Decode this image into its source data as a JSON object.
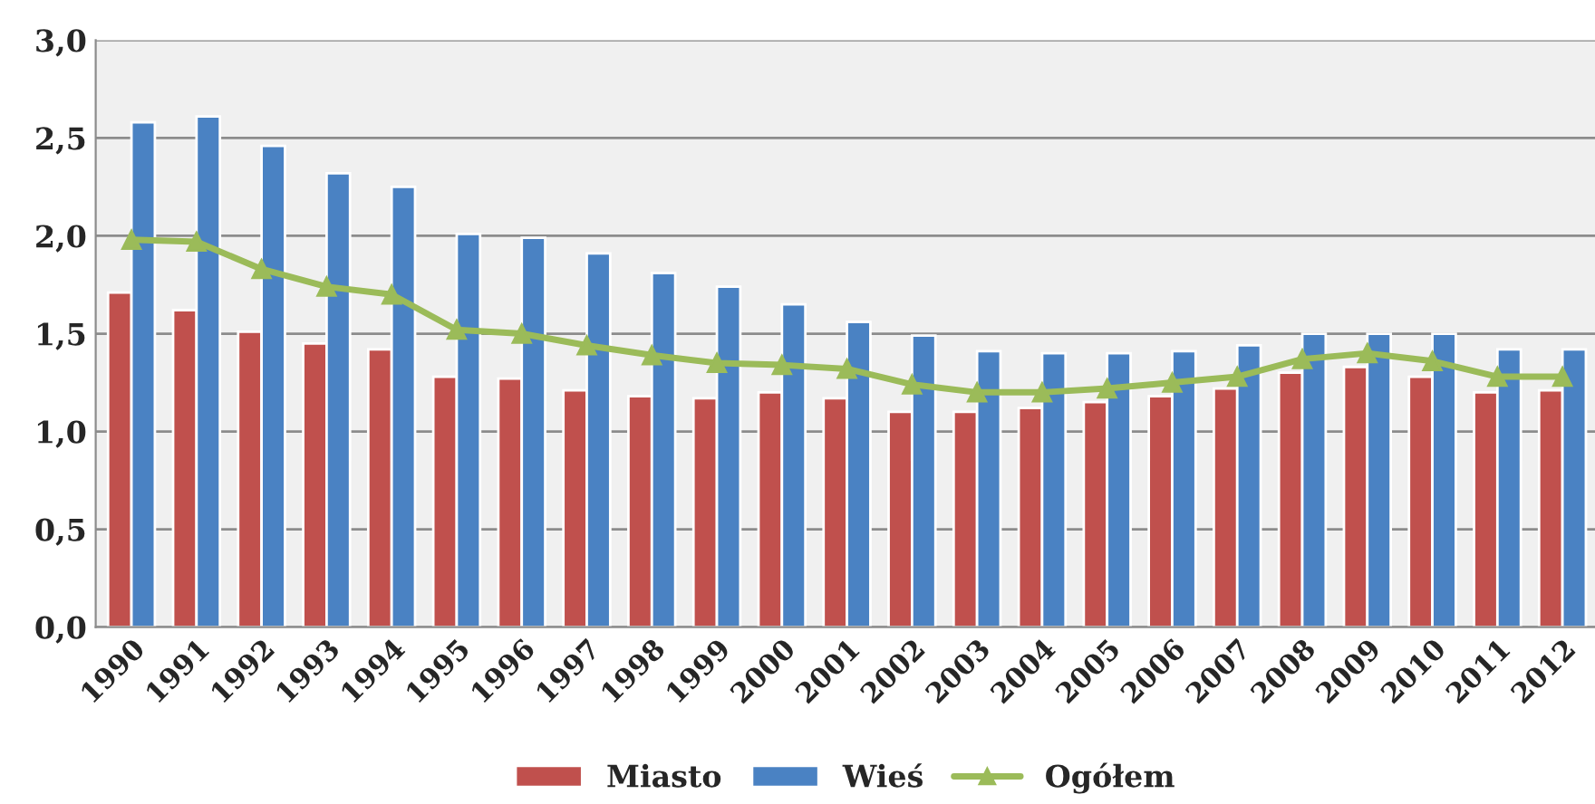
{
  "chart_data": {
    "type": "bar",
    "categories": [
      "1990",
      "1991",
      "1992",
      "1993",
      "1994",
      "1995",
      "1996",
      "1997",
      "1998",
      "1999",
      "2000",
      "2001",
      "2002",
      "2003",
      "2004",
      "2005",
      "2006",
      "2007",
      "2008",
      "2009",
      "2010",
      "2011",
      "2012"
    ],
    "series": [
      {
        "name": "Miasto",
        "color": "#c0504d",
        "values": [
          1.71,
          1.62,
          1.51,
          1.45,
          1.42,
          1.28,
          1.27,
          1.21,
          1.18,
          1.17,
          1.2,
          1.17,
          1.1,
          1.1,
          1.12,
          1.15,
          1.18,
          1.22,
          1.3,
          1.33,
          1.28,
          1.2,
          1.21
        ]
      },
      {
        "name": "Wieś",
        "color": "#4a82c3",
        "values": [
          2.58,
          2.61,
          2.46,
          2.32,
          2.25,
          2.01,
          1.99,
          1.91,
          1.81,
          1.74,
          1.65,
          1.56,
          1.49,
          1.41,
          1.4,
          1.4,
          1.41,
          1.44,
          1.5,
          1.5,
          1.5,
          1.42,
          1.42
        ]
      },
      {
        "name": "Ogółem",
        "type": "line",
        "marker": "triangle",
        "color": "#9bbb59",
        "values": [
          1.98,
          1.97,
          1.83,
          1.74,
          1.7,
          1.52,
          1.5,
          1.44,
          1.39,
          1.35,
          1.34,
          1.32,
          1.24,
          1.2,
          1.2,
          1.22,
          1.25,
          1.28,
          1.37,
          1.4,
          1.36,
          1.28,
          1.28
        ]
      }
    ],
    "ylim": [
      0,
      3
    ],
    "yticks": [
      {
        "value": 0,
        "label": "0,0"
      },
      {
        "value": 0.5,
        "label": "0,5"
      },
      {
        "value": 1,
        "label": "1,0"
      },
      {
        "value": 1.5,
        "label": "1,5"
      },
      {
        "value": 2,
        "label": "2,0"
      },
      {
        "value": 2.5,
        "label": "2,5"
      },
      {
        "value": 3,
        "label": "3,0"
      }
    ],
    "grid": "y",
    "legend": "bottom"
  }
}
